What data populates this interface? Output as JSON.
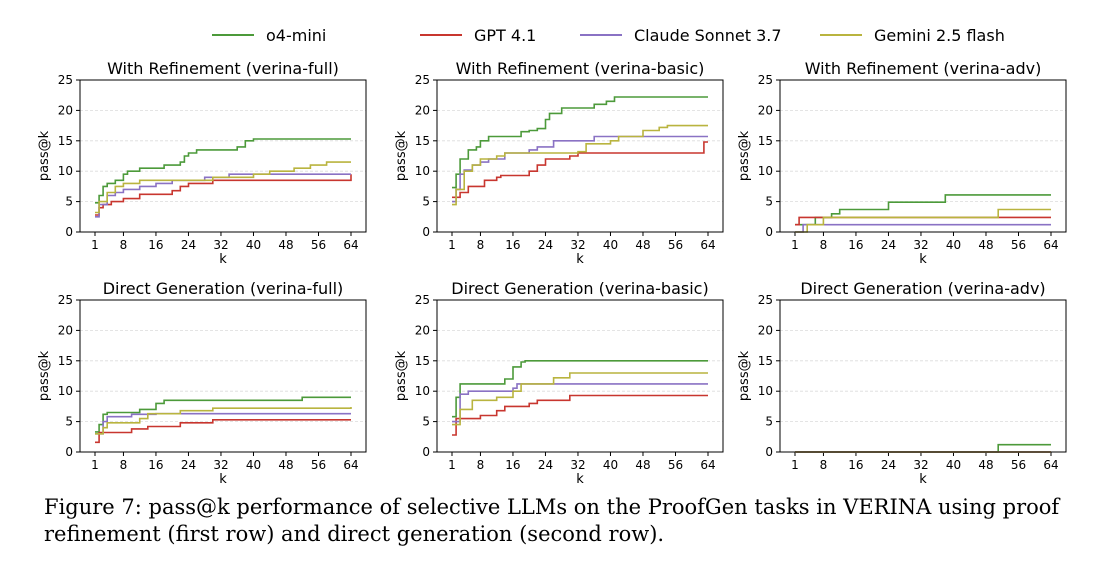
{
  "legend": [
    {
      "name": "o4-mini",
      "color": "#4c9a3a"
    },
    {
      "name": "GPT 4.1",
      "color": "#c8362f"
    },
    {
      "name": "Claude Sonnet 3.7",
      "color": "#8a72c4"
    },
    {
      "name": "Gemini 2.5 flash",
      "color": "#b9b43f"
    }
  ],
  "caption": {
    "label": "Figure 7: ",
    "text": "pass@k performance of selective LLMs on the ProofGen tasks in VERINA using proof refinement (first row) and direct generation (second row)."
  },
  "chart_data": [
    {
      "type": "line",
      "title": "With Refinement (verina-full)",
      "xlabel": "k",
      "ylabel": "pass@k",
      "xticks": [
        1,
        8,
        16,
        24,
        32,
        40,
        48,
        56,
        64
      ],
      "yticks": [
        0,
        5,
        10,
        15,
        20,
        25
      ],
      "xlim": [
        1,
        64
      ],
      "ylim": [
        0,
        25
      ],
      "grid": true,
      "series": [
        {
          "name": "o4-mini",
          "values": [
            [
              1,
              4.8
            ],
            [
              2,
              6.0
            ],
            [
              3,
              7.5
            ],
            [
              4,
              8.0
            ],
            [
              6,
              8.5
            ],
            [
              8,
              9.5
            ],
            [
              9,
              10.0
            ],
            [
              12,
              10.5
            ],
            [
              16,
              10.5
            ],
            [
              18,
              11.0
            ],
            [
              22,
              11.5
            ],
            [
              23,
              12.5
            ],
            [
              24,
              13.0
            ],
            [
              26,
              13.5
            ],
            [
              36,
              14.0
            ],
            [
              38,
              15.0
            ],
            [
              40,
              15.3
            ],
            [
              64,
              15.3
            ]
          ]
        },
        {
          "name": "GPT 4.1",
          "values": [
            [
              1,
              2.8
            ],
            [
              2,
              4.0
            ],
            [
              3,
              4.5
            ],
            [
              5,
              5.0
            ],
            [
              8,
              5.5
            ],
            [
              12,
              6.2
            ],
            [
              20,
              6.8
            ],
            [
              22,
              7.5
            ],
            [
              24,
              8.0
            ],
            [
              30,
              8.5
            ],
            [
              64,
              9.5
            ]
          ]
        },
        {
          "name": "Claude Sonnet 3.7",
          "values": [
            [
              1,
              2.5
            ],
            [
              2,
              4.5
            ],
            [
              4,
              6.0
            ],
            [
              6,
              6.5
            ],
            [
              8,
              7.0
            ],
            [
              12,
              7.5
            ],
            [
              16,
              8.0
            ],
            [
              20,
              8.5
            ],
            [
              28,
              9.0
            ],
            [
              34,
              9.5
            ],
            [
              64,
              9.5
            ]
          ]
        },
        {
          "name": "Gemini 2.5 flash",
          "values": [
            [
              1,
              3.2
            ],
            [
              2,
              5.0
            ],
            [
              4,
              6.5
            ],
            [
              6,
              7.5
            ],
            [
              8,
              8.0
            ],
            [
              12,
              8.5
            ],
            [
              30,
              9.0
            ],
            [
              40,
              9.5
            ],
            [
              44,
              10.0
            ],
            [
              50,
              10.5
            ],
            [
              54,
              11.0
            ],
            [
              58,
              11.5
            ],
            [
              64,
              11.5
            ]
          ]
        }
      ]
    },
    {
      "type": "line",
      "title": "With Refinement (verina-basic)",
      "xlabel": "k",
      "ylabel": "pass@k",
      "xticks": [
        1,
        8,
        16,
        24,
        32,
        40,
        48,
        56,
        64
      ],
      "yticks": [
        0,
        5,
        10,
        15,
        20,
        25
      ],
      "xlim": [
        1,
        64
      ],
      "ylim": [
        0,
        25
      ],
      "grid": true,
      "series": [
        {
          "name": "o4-mini",
          "values": [
            [
              1,
              7.3
            ],
            [
              2,
              9.5
            ],
            [
              3,
              12.0
            ],
            [
              5,
              13.5
            ],
            [
              7,
              14.0
            ],
            [
              8,
              15.0
            ],
            [
              10,
              15.7
            ],
            [
              18,
              16.5
            ],
            [
              20,
              16.7
            ],
            [
              22,
              17.0
            ],
            [
              24,
              18.5
            ],
            [
              25,
              19.5
            ],
            [
              28,
              20.4
            ],
            [
              36,
              21.0
            ],
            [
              39,
              21.5
            ],
            [
              41,
              22.2
            ],
            [
              64,
              22.2
            ]
          ]
        },
        {
          "name": "GPT 4.1",
          "values": [
            [
              1,
              5.7
            ],
            [
              3,
              6.5
            ],
            [
              5,
              7.5
            ],
            [
              9,
              8.5
            ],
            [
              12,
              9.0
            ],
            [
              13,
              9.3
            ],
            [
              20,
              10.0
            ],
            [
              22,
              11.0
            ],
            [
              24,
              12.0
            ],
            [
              30,
              12.5
            ],
            [
              32,
              13.0
            ],
            [
              62,
              13.0
            ],
            [
              63,
              14.8
            ],
            [
              64,
              14.8
            ]
          ]
        },
        {
          "name": "Claude Sonnet 3.7",
          "values": [
            [
              1,
              5.0
            ],
            [
              2,
              7.0
            ],
            [
              3,
              9.5
            ],
            [
              4,
              10.2
            ],
            [
              6,
              11.0
            ],
            [
              8,
              11.5
            ],
            [
              10,
              12.0
            ],
            [
              14,
              13.0
            ],
            [
              20,
              13.5
            ],
            [
              22,
              14.0
            ],
            [
              26,
              15.0
            ],
            [
              36,
              15.7
            ],
            [
              64,
              15.7
            ]
          ]
        },
        {
          "name": "Gemini 2.5 flash",
          "values": [
            [
              1,
              4.5
            ],
            [
              2,
              7.0
            ],
            [
              4,
              10.0
            ],
            [
              6,
              11.0
            ],
            [
              8,
              12.0
            ],
            [
              12,
              12.5
            ],
            [
              14,
              13.0
            ],
            [
              32,
              13.2
            ],
            [
              34,
              14.5
            ],
            [
              40,
              15.0
            ],
            [
              42,
              15.7
            ],
            [
              48,
              16.7
            ],
            [
              52,
              17.2
            ],
            [
              54,
              17.5
            ],
            [
              64,
              17.5
            ]
          ]
        }
      ]
    },
    {
      "type": "line",
      "title": "With Refinement (verina-adv)",
      "xlabel": "k",
      "ylabel": "pass@k",
      "xticks": [
        1,
        8,
        16,
        24,
        32,
        40,
        48,
        56,
        64
      ],
      "yticks": [
        0,
        5,
        10,
        15,
        20,
        25
      ],
      "xlim": [
        1,
        64
      ],
      "ylim": [
        0,
        25
      ],
      "grid": true,
      "series": [
        {
          "name": "o4-mini",
          "values": [
            [
              1,
              1.2
            ],
            [
              6,
              2.4
            ],
            [
              10,
              3.0
            ],
            [
              12,
              3.7
            ],
            [
              24,
              4.9
            ],
            [
              38,
              6.1
            ],
            [
              64,
              6.1
            ]
          ]
        },
        {
          "name": "GPT 4.1",
          "values": [
            [
              1,
              1.2
            ],
            [
              2,
              2.4
            ],
            [
              64,
              2.4
            ]
          ]
        },
        {
          "name": "Claude Sonnet 3.7",
          "values": [
            [
              1,
              0
            ],
            [
              2,
              0
            ],
            [
              3,
              1.2
            ],
            [
              64,
              1.2
            ]
          ]
        },
        {
          "name": "Gemini 2.5 flash",
          "values": [
            [
              1,
              0
            ],
            [
              4,
              1.2
            ],
            [
              8,
              2.4
            ],
            [
              50,
              2.4
            ],
            [
              51,
              3.7
            ],
            [
              64,
              3.7
            ]
          ]
        }
      ]
    },
    {
      "type": "line",
      "title": "Direct Generation (verina-full)",
      "xlabel": "k",
      "ylabel": "pass@k",
      "xticks": [
        1,
        8,
        16,
        24,
        32,
        40,
        48,
        56,
        64
      ],
      "yticks": [
        0,
        5,
        10,
        15,
        20,
        25
      ],
      "xlim": [
        1,
        64
      ],
      "ylim": [
        0,
        25
      ],
      "grid": true,
      "series": [
        {
          "name": "o4-mini",
          "values": [
            [
              1,
              3.3
            ],
            [
              2,
              4.5
            ],
            [
              3,
              6.2
            ],
            [
              4,
              6.5
            ],
            [
              10,
              6.5
            ],
            [
              12,
              7.0
            ],
            [
              16,
              8.0
            ],
            [
              18,
              8.5
            ],
            [
              50,
              8.5
            ],
            [
              52,
              9.0
            ],
            [
              64,
              9.0
            ]
          ]
        },
        {
          "name": "GPT 4.1",
          "values": [
            [
              1,
              1.6
            ],
            [
              2,
              3.2
            ],
            [
              8,
              3.2
            ],
            [
              10,
              3.8
            ],
            [
              14,
              4.2
            ],
            [
              22,
              4.8
            ],
            [
              30,
              5.3
            ],
            [
              64,
              5.3
            ]
          ]
        },
        {
          "name": "Claude Sonnet 3.7",
          "values": [
            [
              1,
              3.0
            ],
            [
              3,
              5.0
            ],
            [
              4,
              5.8
            ],
            [
              10,
              6.2
            ],
            [
              16,
              6.3
            ],
            [
              64,
              6.3
            ]
          ]
        },
        {
          "name": "Gemini 2.5 flash",
          "values": [
            [
              1,
              3.0
            ],
            [
              3,
              4.0
            ],
            [
              4,
              4.8
            ],
            [
              12,
              5.5
            ],
            [
              14,
              6.3
            ],
            [
              22,
              6.8
            ],
            [
              30,
              7.2
            ],
            [
              64,
              7.4
            ]
          ]
        }
      ]
    },
    {
      "type": "line",
      "title": "Direct Generation (verina-basic)",
      "xlabel": "k",
      "ylabel": "pass@k",
      "xticks": [
        1,
        8,
        16,
        24,
        32,
        40,
        48,
        56,
        64
      ],
      "yticks": [
        0,
        5,
        10,
        15,
        20,
        25
      ],
      "xlim": [
        1,
        64
      ],
      "ylim": [
        0,
        25
      ],
      "grid": true,
      "series": [
        {
          "name": "o4-mini",
          "values": [
            [
              1,
              5.8
            ],
            [
              2,
              9.0
            ],
            [
              3,
              11.2
            ],
            [
              14,
              12.0
            ],
            [
              16,
              14.0
            ],
            [
              18,
              14.8
            ],
            [
              19,
              15.0
            ],
            [
              64,
              15.0
            ]
          ]
        },
        {
          "name": "GPT 4.1",
          "values": [
            [
              1,
              2.8
            ],
            [
              2,
              5.5
            ],
            [
              8,
              6.0
            ],
            [
              12,
              6.8
            ],
            [
              14,
              7.5
            ],
            [
              20,
              8.0
            ],
            [
              22,
              8.5
            ],
            [
              30,
              9.3
            ],
            [
              64,
              9.3
            ]
          ]
        },
        {
          "name": "Claude Sonnet 3.7",
          "values": [
            [
              1,
              5.0
            ],
            [
              3,
              9.5
            ],
            [
              5,
              10.0
            ],
            [
              16,
              10.5
            ],
            [
              17,
              11.2
            ],
            [
              64,
              11.2
            ]
          ]
        },
        {
          "name": "Gemini 2.5 flash",
          "values": [
            [
              1,
              4.5
            ],
            [
              3,
              7.0
            ],
            [
              6,
              8.5
            ],
            [
              12,
              9.0
            ],
            [
              16,
              10.0
            ],
            [
              18,
              11.2
            ],
            [
              26,
              12.2
            ],
            [
              30,
              13.0
            ],
            [
              64,
              13.0
            ]
          ]
        }
      ]
    },
    {
      "type": "line",
      "title": "Direct Generation (verina-adv)",
      "xlabel": "k",
      "ylabel": "pass@k",
      "xticks": [
        1,
        8,
        16,
        24,
        32,
        40,
        48,
        56,
        64
      ],
      "yticks": [
        0,
        5,
        10,
        15,
        20,
        25
      ],
      "xlim": [
        1,
        64
      ],
      "ylim": [
        0,
        25
      ],
      "grid": true,
      "series": [
        {
          "name": "o4-mini",
          "values": [
            [
              1,
              0
            ],
            [
              50,
              0
            ],
            [
              51,
              1.2
            ],
            [
              64,
              1.2
            ]
          ]
        },
        {
          "name": "GPT 4.1",
          "values": [
            [
              1,
              0
            ],
            [
              64,
              0
            ]
          ]
        },
        {
          "name": "Claude Sonnet 3.7",
          "values": [
            [
              1,
              0
            ],
            [
              64,
              0
            ]
          ]
        },
        {
          "name": "Gemini 2.5 flash",
          "values": [
            [
              1,
              0
            ],
            [
              64,
              0
            ]
          ]
        }
      ]
    }
  ]
}
